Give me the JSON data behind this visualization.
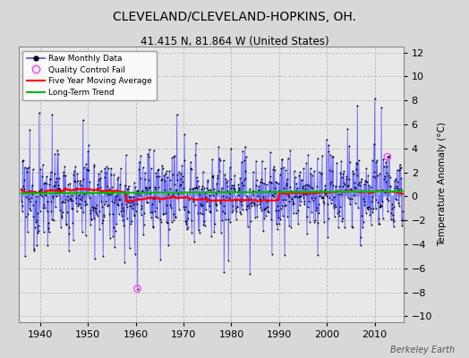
{
  "title": "CLEVELAND/CLEVELAND-HOPKINS, OH.",
  "subtitle": "41.415 N, 81.864 W (United States)",
  "ylabel": "Temperature Anomaly (°C)",
  "watermark": "Berkeley Earth",
  "start_year": 1935.5,
  "end_year": 2015.5,
  "xlim": [
    1935.5,
    2016.0
  ],
  "ylim": [
    -10.5,
    12.5
  ],
  "yticks": [
    -10,
    -8,
    -6,
    -4,
    -2,
    0,
    2,
    4,
    6,
    8,
    10,
    12
  ],
  "xticks": [
    1940,
    1950,
    1960,
    1970,
    1980,
    1990,
    2000,
    2010
  ],
  "background_color": "#d8d8d8",
  "plot_bg_color": "#e8e8e8",
  "raw_line_color": "#5555ff",
  "raw_dot_color": "#000000",
  "qc_fail_color": "#ff44ff",
  "moving_avg_color": "#ff0000",
  "trend_color": "#00bb00",
  "seed": 12345,
  "n_months": 960,
  "qc_fail_indices": [
    292,
    920
  ],
  "qc_fail_values": [
    -7.7,
    3.3
  ]
}
